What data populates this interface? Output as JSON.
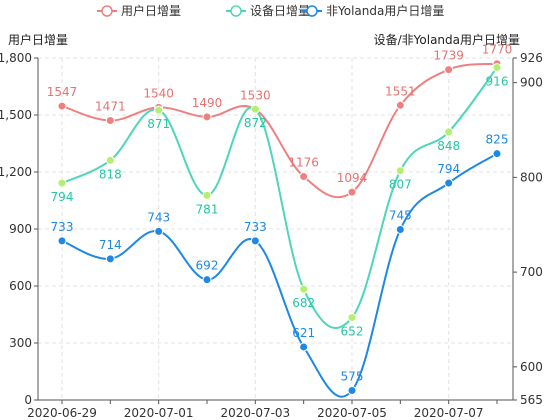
{
  "chart_data": {
    "type": "line",
    "title": "",
    "legend_position": "top-center",
    "legend": [
      "用户日增量",
      "设备日增量",
      "非Yolanda用户日增量"
    ],
    "x": [
      "2020-06-29",
      "2020-06-30",
      "2020-07-01",
      "2020-07-02",
      "2020-07-03",
      "2020-07-04",
      "2020-07-05",
      "2020-07-06",
      "2020-07-07",
      "2020-07-08"
    ],
    "x_tick_labels": [
      "2020-06-29",
      "2020-07-01",
      "2020-07-03",
      "2020-07-05",
      "2020-07-07"
    ],
    "left_axis": {
      "title": "用户日增量",
      "min": 0,
      "max": 1800,
      "ticks": [
        "0",
        "300",
        "600",
        "900",
        "1,200",
        "1,500",
        "1,800"
      ]
    },
    "right_axis": {
      "title": "设备/非Yolanda用户日增量",
      "min": 565,
      "max": 926,
      "ticks": [
        "565",
        "600",
        "700",
        "800",
        "900",
        "926"
      ]
    },
    "grid": true,
    "series": [
      {
        "name": "用户日增量",
        "axis": "left",
        "color": "#f08080",
        "marker_color": "#f08080",
        "values": [
          1547,
          1471,
          1540,
          1490,
          1530,
          1176,
          1094,
          1551,
          1739,
          1770
        ]
      },
      {
        "name": "设备日增量",
        "axis": "right",
        "color": "#4fd6b8",
        "marker_color": "#b5ef6e",
        "values": [
          794,
          818,
          871,
          781,
          872,
          682,
          652,
          807,
          848,
          916
        ]
      },
      {
        "name": "非Yolanda用户日增量",
        "axis": "right",
        "color": "#1e88e5",
        "marker_color": "#1e88e5",
        "values": [
          733,
          714,
          743,
          692,
          733,
          621,
          575,
          745,
          794,
          825
        ]
      }
    ]
  }
}
